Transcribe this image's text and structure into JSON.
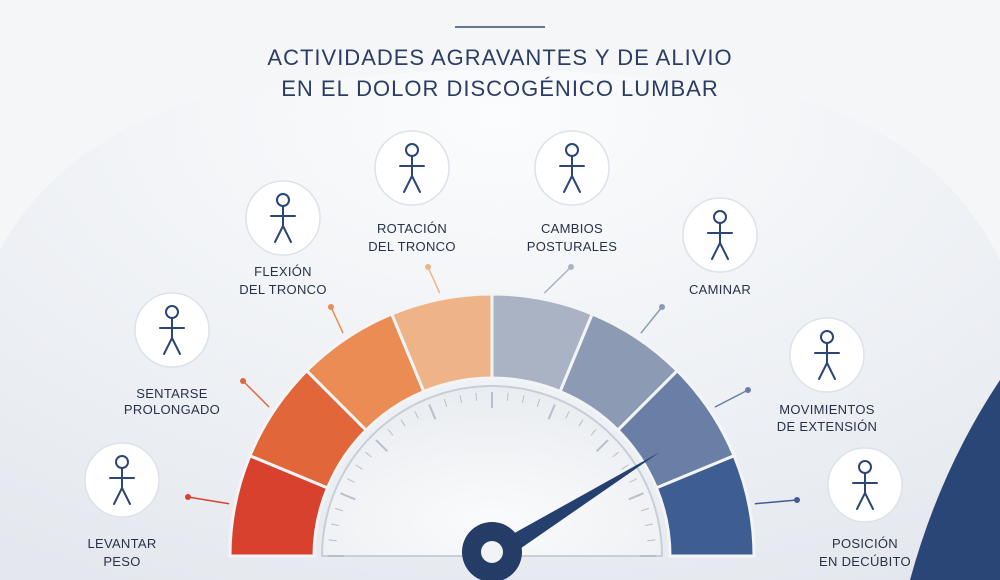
{
  "header": {
    "title_lines": [
      "ACTIVIDADES AGRAVANTES Y DE ALIVIO",
      "EN EL DOLOR DISCOGÉNICO LUMBAR"
    ]
  },
  "activities": [
    {
      "lines": [
        "LEVANTAR",
        "PESO"
      ]
    },
    {
      "lines": [
        "SENTARSE",
        "PROLONGADO"
      ]
    },
    {
      "lines": [
        "FLEXIÓN",
        "DEL TRONCO"
      ]
    },
    {
      "lines": [
        "ROTACIÓN",
        "DEL TRONCO"
      ]
    },
    {
      "lines": [
        "CAMBIOS",
        "POSTURALES"
      ]
    },
    {
      "lines": [
        "CAMINAR"
      ]
    },
    {
      "lines": [
        "MOVIMIENTOS",
        "DE EXTENSIÓN"
      ]
    },
    {
      "lines": [
        "POSICIÓN",
        "EN DECÚBITO"
      ]
    }
  ]
}
